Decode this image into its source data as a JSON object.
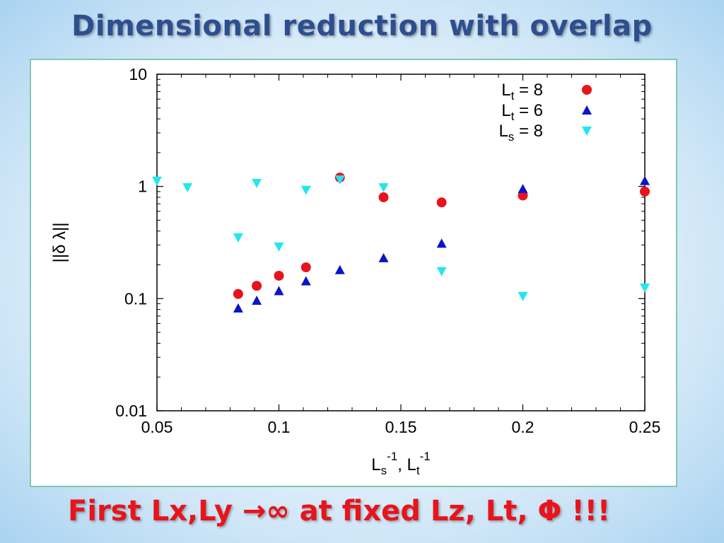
{
  "slide": {
    "title": "Dimensional reduction with overlap",
    "bottom_text": "First Lx,Ly →∞ at fixed Lz, Lt, Φ !!!"
  },
  "chart_data": {
    "type": "scatter",
    "title": "",
    "xlabel": {
      "main1": "L",
      "sub1": "s",
      "sup1": "-1",
      "sep": ", ",
      "main2": "L",
      "sub2": "t",
      "sup2": "-1"
    },
    "ylabel": "||δ λ||",
    "xlim": [
      0.05,
      0.25
    ],
    "ylim": [
      0.01,
      10
    ],
    "yscale": "log",
    "x_ticks": [
      "0.05",
      "0.1",
      "0.15",
      "0.2",
      "0.25"
    ],
    "x_tick_values": [
      0.05,
      0.1,
      0.15,
      0.2,
      0.25
    ],
    "y_ticks": [
      "0.01",
      "0.1",
      "1",
      "10"
    ],
    "y_tick_values": [
      0.01,
      0.1,
      1,
      10
    ],
    "grid": false,
    "legend_position": "top-right",
    "series": [
      {
        "name": {
          "main": "L",
          "sub": "t",
          "rest": " = 8"
        },
        "marker": "circle",
        "color": "#e8141c",
        "x": [
          0.0833,
          0.0909,
          0.1,
          0.1111,
          0.125,
          0.1429,
          0.1667,
          0.2,
          0.25
        ],
        "y": [
          0.11,
          0.13,
          0.16,
          0.19,
          1.2,
          0.8,
          0.72,
          0.83,
          0.9
        ]
      },
      {
        "name": {
          "main": "L",
          "sub": "t",
          "rest": " = 6"
        },
        "marker": "triangle-up",
        "color": "#0a14c8",
        "x": [
          0.0833,
          0.0909,
          0.1,
          0.1111,
          0.125,
          0.1429,
          0.1667,
          0.2,
          0.25
        ],
        "y": [
          0.082,
          0.096,
          0.117,
          0.143,
          0.18,
          0.23,
          0.31,
          0.95,
          1.12
        ]
      },
      {
        "name": {
          "main": "L",
          "sub": "s",
          "rest": " = 8"
        },
        "marker": "triangle-down",
        "color": "#22e6f0",
        "x": [
          0.05,
          0.0625,
          0.0833,
          0.0909,
          0.1,
          0.1111,
          0.125,
          0.1429,
          0.1667,
          0.2,
          0.25
        ],
        "y": [
          1.12,
          0.98,
          0.35,
          1.07,
          0.29,
          0.93,
          1.15,
          0.98,
          0.175,
          0.105,
          0.125
        ]
      }
    ]
  }
}
